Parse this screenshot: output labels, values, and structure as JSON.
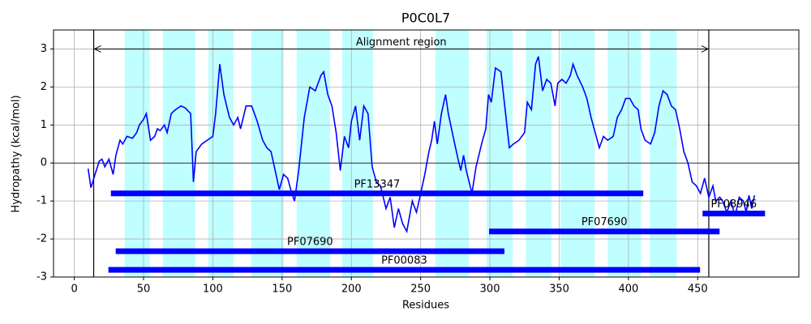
{
  "chart_data": {
    "type": "line",
    "title": "P0C0L7",
    "x_label": "Residues",
    "y_label": "Hydropathy (kcal/mol)",
    "xlim": [
      -15,
      523
    ],
    "ylim": [
      -3,
      3.5
    ],
    "xticks": [
      0,
      50,
      100,
      150,
      200,
      250,
      300,
      350,
      400,
      450
    ],
    "yticks": [
      -3,
      -2,
      -1,
      0,
      1,
      2,
      3
    ],
    "grid": true,
    "color": "#0000ff",
    "reference_line": 0,
    "region_color": "#00ffff",
    "regions": [
      [
        36.3,
        54.5
      ],
      [
        63.9,
        87.3
      ],
      [
        96.7,
        114.8
      ],
      [
        127.7,
        151.2
      ],
      [
        160.5,
        184.6
      ],
      [
        193.4,
        215.6
      ],
      [
        260.7,
        284.8
      ],
      [
        297.6,
        316.4
      ],
      [
        325.8,
        344.5
      ],
      [
        351,
        375.6
      ],
      [
        385,
        409
      ],
      [
        415.4,
        434.8
      ]
    ],
    "alignment": {
      "label": "Alignment region",
      "start": 14,
      "end": 458
    },
    "domains": [
      {
        "name": "PF13347",
        "start": 26.4,
        "end": 410.7,
        "y": -0.8
      },
      {
        "name": "PF08946",
        "start": 453.5,
        "end": 498.6,
        "y": -1.33
      },
      {
        "name": "PF07690",
        "start": 299.4,
        "end": 465.8,
        "y": -1.8
      },
      {
        "name": "PF07690",
        "start": 29.9,
        "end": 310.5,
        "y": -2.32
      },
      {
        "name": "PF00083",
        "start": 24.6,
        "end": 451.7,
        "y": -2.81
      }
    ],
    "x": [
      10,
      12,
      15,
      18,
      20,
      22,
      25,
      28,
      30,
      33,
      35,
      38,
      42,
      45,
      47,
      50,
      52,
      55,
      58,
      60,
      62,
      65,
      67,
      70,
      73,
      77,
      80,
      84,
      86,
      88,
      92,
      96,
      100,
      102,
      105,
      108,
      112,
      115,
      118,
      120,
      124,
      128,
      132,
      136,
      139,
      142,
      145,
      148,
      151,
      154,
      157,
      159,
      162,
      166,
      170,
      174,
      178,
      180,
      183,
      186,
      189,
      192,
      195,
      198,
      200,
      203,
      206,
      209,
      212,
      215,
      218,
      221,
      225,
      228,
      231,
      234,
      237,
      240,
      244,
      247,
      250,
      253,
      256,
      258,
      260,
      262,
      265,
      268,
      270,
      274,
      277,
      279,
      281,
      283,
      287,
      290,
      294,
      297,
      299,
      301,
      304,
      308,
      311,
      314,
      317,
      321,
      325,
      327,
      330,
      333,
      335,
      338,
      341,
      344,
      347,
      349,
      352,
      355,
      358,
      360,
      363,
      367,
      370,
      373,
      376,
      379,
      382,
      385,
      389,
      392,
      395,
      398,
      401,
      404,
      407,
      409,
      412,
      416,
      419,
      422,
      425,
      428,
      431,
      434,
      437,
      440,
      443,
      446,
      449,
      452,
      455,
      458,
      461,
      463,
      466,
      468,
      471,
      474,
      477,
      480,
      483,
      485,
      487,
      489,
      491
    ],
    "values": [
      -0.15,
      -0.65,
      -0.3,
      0.05,
      0.1,
      -0.1,
      0.1,
      -0.3,
      0.2,
      0.6,
      0.5,
      0.7,
      0.65,
      0.8,
      1.0,
      1.15,
      1.3,
      0.6,
      0.7,
      0.9,
      0.85,
      1.0,
      0.8,
      1.3,
      1.4,
      1.5,
      1.45,
      1.3,
      -0.5,
      0.3,
      0.5,
      0.6,
      0.7,
      1.3,
      2.6,
      1.8,
      1.2,
      1.0,
      1.2,
      0.9,
      1.5,
      1.5,
      1.1,
      0.6,
      0.4,
      0.3,
      -0.2,
      -0.7,
      -0.3,
      -0.4,
      -0.8,
      -1.0,
      -0.2,
      1.2,
      2.0,
      1.9,
      2.3,
      2.4,
      1.8,
      1.5,
      0.8,
      -0.2,
      0.7,
      0.4,
      1.1,
      1.5,
      0.6,
      1.5,
      1.3,
      -0.1,
      -0.5,
      -0.6,
      -1.2,
      -0.9,
      -1.7,
      -1.2,
      -1.6,
      -1.8,
      -1.0,
      -1.3,
      -0.8,
      -0.3,
      0.3,
      0.6,
      1.1,
      0.5,
      1.3,
      1.8,
      1.3,
      0.6,
      0.1,
      -0.2,
      0.2,
      -0.2,
      -0.8,
      -0.1,
      0.5,
      0.9,
      1.8,
      1.6,
      2.5,
      2.4,
      1.4,
      0.4,
      0.5,
      0.6,
      0.8,
      1.6,
      1.4,
      2.6,
      2.8,
      1.9,
      2.2,
      2.1,
      1.5,
      2.1,
      2.2,
      2.1,
      2.3,
      2.6,
      2.3,
      2.0,
      1.7,
      1.2,
      0.8,
      0.4,
      0.7,
      0.6,
      0.7,
      1.2,
      1.4,
      1.7,
      1.7,
      1.5,
      1.4,
      0.9,
      0.6,
      0.5,
      0.8,
      1.5,
      1.9,
      1.8,
      1.5,
      1.4,
      0.9,
      0.3,
      0.0,
      -0.5,
      -0.6,
      -0.8,
      -0.4,
      -0.9,
      -0.6,
      -1.0,
      -0.9,
      -1.0,
      -1.3,
      -1.0,
      -1.4,
      -0.9,
      -1.0,
      -1.3,
      -0.85,
      -1.2,
      -0.85
    ]
  }
}
